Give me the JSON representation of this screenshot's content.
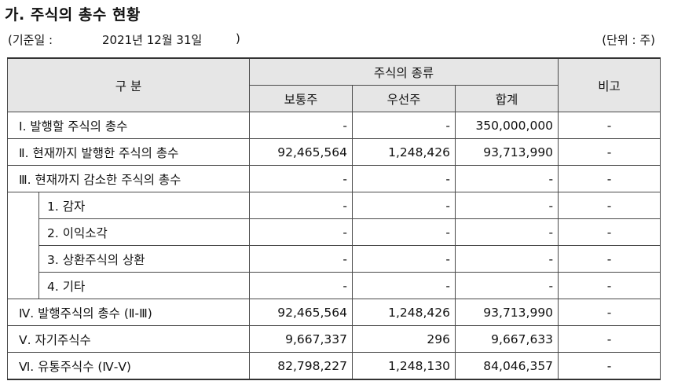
{
  "title": "가. 주식의 총수 현황",
  "meta": {
    "base_label": "(기준일 :",
    "base_date": "2021년 12월 31일",
    "base_close": ")",
    "unit": "(단위 : 주)"
  },
  "header": {
    "category": "구 분",
    "group": "주식의 종류",
    "common": "보통주",
    "preferred": "우선주",
    "total": "합계",
    "remarks": "비고"
  },
  "rows": [
    {
      "label": "Ⅰ. 발행할 주식의 총수",
      "common": "-",
      "preferred": "-",
      "total": "350,000,000",
      "remarks": "-"
    },
    {
      "label": "Ⅱ. 현재까지 발행한 주식의 총수",
      "common": "92,465,564",
      "preferred": "1,248,426",
      "total": "93,713,990",
      "remarks": "-"
    },
    {
      "label": "Ⅲ. 현재까지 감소한 주식의 총수",
      "common": "-",
      "preferred": "-",
      "total": "-",
      "remarks": "-"
    },
    {
      "label": "1. 감자",
      "common": "-",
      "preferred": "-",
      "total": "-",
      "remarks": "-"
    },
    {
      "label": "2. 이익소각",
      "common": "-",
      "preferred": "-",
      "total": "-",
      "remarks": "-"
    },
    {
      "label": "3. 상환주식의 상환",
      "common": "-",
      "preferred": "-",
      "total": "-",
      "remarks": "-"
    },
    {
      "label": "4. 기타",
      "common": "-",
      "preferred": "-",
      "total": "-",
      "remarks": "-"
    },
    {
      "label": "Ⅳ. 발행주식의 총수 (Ⅱ-Ⅲ)",
      "common": "92,465,564",
      "preferred": "1,248,426",
      "total": "93,713,990",
      "remarks": "-"
    },
    {
      "label": "Ⅴ. 자기주식수",
      "common": "9,667,337",
      "preferred": "296",
      "total": "9,667,633",
      "remarks": "-"
    },
    {
      "label": "Ⅵ. 유통주식수 (Ⅳ-Ⅴ)",
      "common": "82,798,227",
      "preferred": "1,248,130",
      "total": "84,046,357",
      "remarks": "-"
    }
  ]
}
